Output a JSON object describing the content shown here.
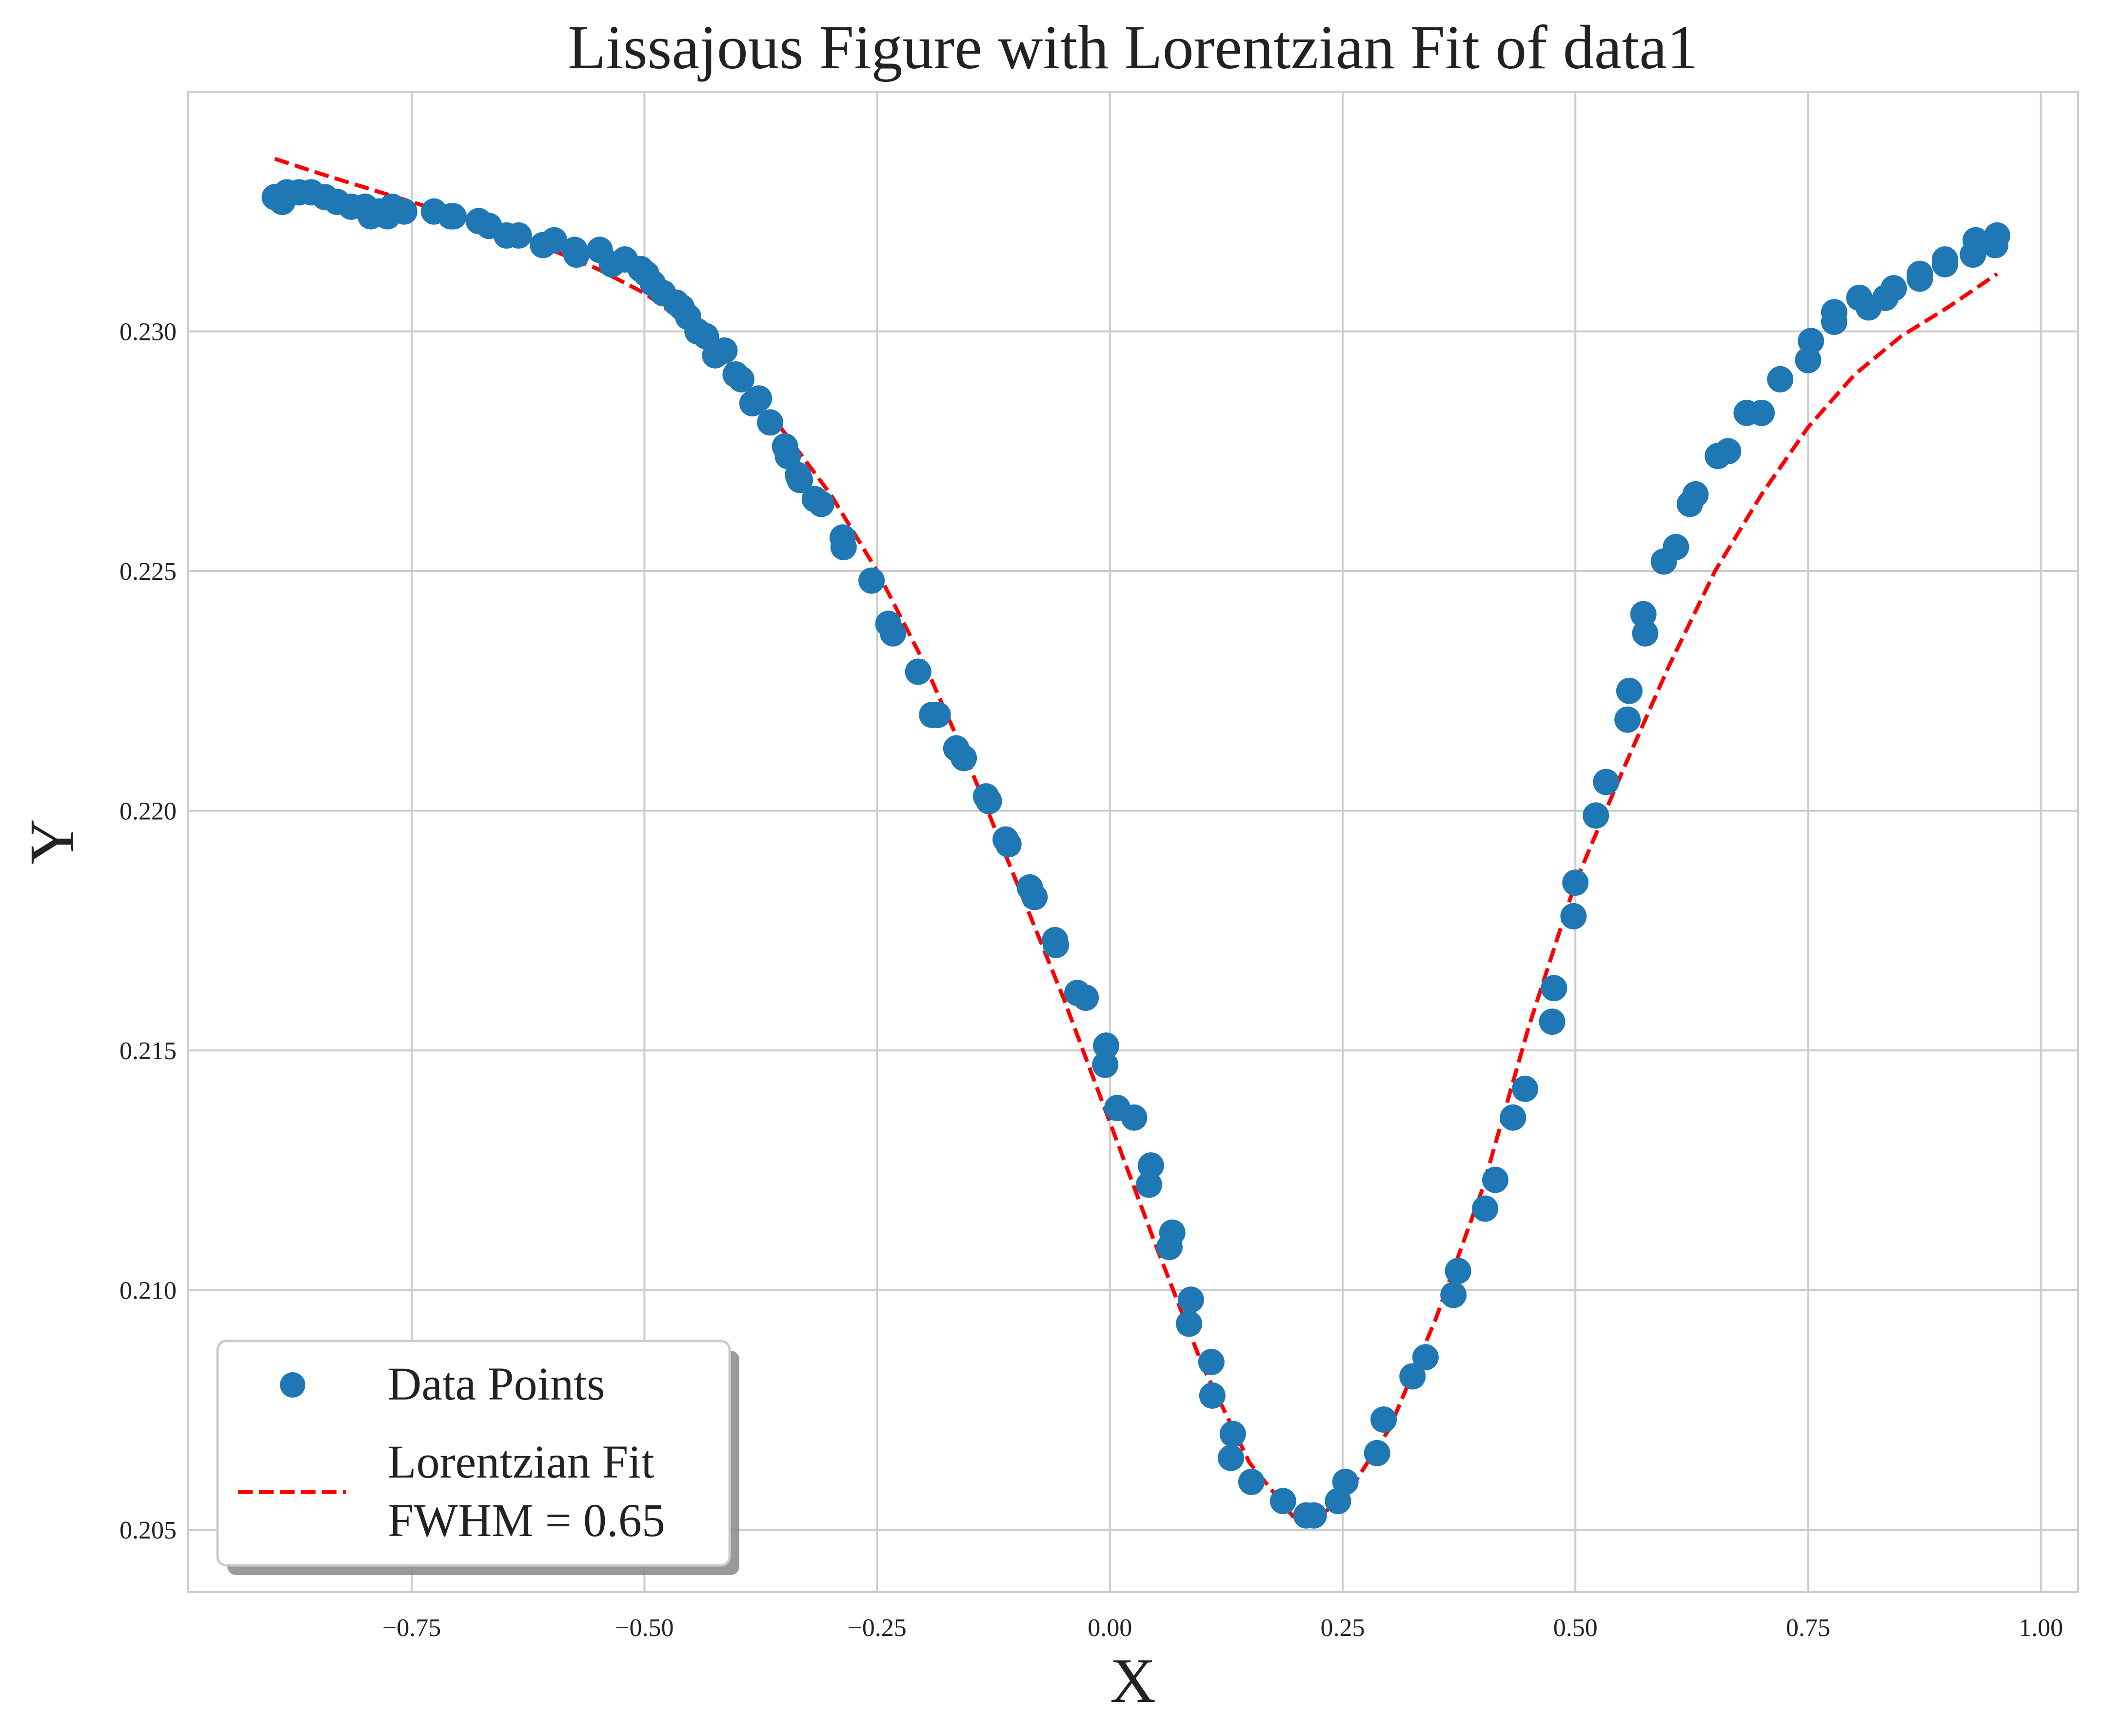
{
  "chart_data": {
    "type": "scatter",
    "title": "Lissajous Figure with Lorentzian Fit of data1",
    "xlabel": "X",
    "ylabel": "Y",
    "xlim": [
      -0.99,
      1.04
    ],
    "ylim": [
      0.2037,
      0.235
    ],
    "x_ticks": [
      -0.75,
      -0.5,
      -0.25,
      0.0,
      0.25,
      0.5,
      0.75,
      1.0
    ],
    "x_tick_labels": [
      "−0.75",
      "−0.50",
      "−0.25",
      "0.00",
      "0.25",
      "0.50",
      "0.75",
      "1.00"
    ],
    "y_ticks": [
      0.205,
      0.21,
      0.215,
      0.22,
      0.225,
      0.23
    ],
    "y_tick_labels": [
      "0.205",
      "0.210",
      "0.215",
      "0.220",
      "0.225",
      "0.230"
    ],
    "grid": true,
    "legend_position": "lower-left",
    "legend": [
      {
        "label": "Data Points",
        "marker": "circle"
      },
      {
        "label": "Lorentzian Fit\nFWHM = 0.65",
        "marker": "dashed-line"
      }
    ],
    "colors": {
      "points": "#1f77b4",
      "fit": "#ff0000",
      "grid": "#cccccc",
      "axes": "#cccccc"
    },
    "series": [
      {
        "name": "Data Points",
        "kind": "scatter",
        "points": [
          [
            -0.897,
            0.2328
          ],
          [
            -0.889,
            0.2327
          ],
          [
            -0.884,
            0.2329
          ],
          [
            -0.871,
            0.2329
          ],
          [
            -0.858,
            0.2329
          ],
          [
            -0.843,
            0.2328
          ],
          [
            -0.83,
            0.2327
          ],
          [
            -0.815,
            0.2326
          ],
          [
            -0.8,
            0.2326
          ],
          [
            -0.794,
            0.2324
          ],
          [
            -0.785,
            0.2325
          ],
          [
            -0.776,
            0.2324
          ],
          [
            -0.771,
            0.2326
          ],
          [
            -0.758,
            0.2325
          ],
          [
            -0.726,
            0.2325
          ],
          [
            -0.708,
            0.2324
          ],
          [
            -0.705,
            0.2324
          ],
          [
            -0.678,
            0.2323
          ],
          [
            -0.667,
            0.2322
          ],
          [
            -0.648,
            0.232
          ],
          [
            -0.635,
            0.232
          ],
          [
            -0.609,
            0.2318
          ],
          [
            -0.597,
            0.2319
          ],
          [
            -0.575,
            0.2317
          ],
          [
            -0.573,
            0.2316
          ],
          [
            -0.548,
            0.2317
          ],
          [
            -0.535,
            0.2314
          ],
          [
            -0.521,
            0.2315
          ],
          [
            -0.504,
            0.2313
          ],
          [
            -0.498,
            0.2312
          ],
          [
            -0.491,
            0.231
          ],
          [
            -0.48,
            0.2308
          ],
          [
            -0.466,
            0.2306
          ],
          [
            -0.46,
            0.2305
          ],
          [
            -0.453,
            0.2303
          ],
          [
            -0.443,
            0.23
          ],
          [
            -0.434,
            0.2299
          ],
          [
            -0.424,
            0.2295
          ],
          [
            -0.414,
            0.2296
          ],
          [
            -0.402,
            0.2291
          ],
          [
            -0.396,
            0.229
          ],
          [
            -0.384,
            0.2285
          ],
          [
            -0.377,
            0.2286
          ],
          [
            -0.365,
            0.2281
          ],
          [
            -0.349,
            0.2276
          ],
          [
            -0.346,
            0.2274
          ],
          [
            -0.335,
            0.227
          ],
          [
            -0.333,
            0.2269
          ],
          [
            -0.317,
            0.2265
          ],
          [
            -0.31,
            0.2264
          ],
          [
            -0.287,
            0.2257
          ],
          [
            -0.286,
            0.2255
          ],
          [
            -0.256,
            0.2248
          ],
          [
            -0.238,
            0.2239
          ],
          [
            -0.233,
            0.2237
          ],
          [
            -0.206,
            0.2229
          ],
          [
            -0.191,
            0.222
          ],
          [
            -0.185,
            0.222
          ],
          [
            -0.165,
            0.2213
          ],
          [
            -0.157,
            0.2211
          ],
          [
            -0.133,
            0.2203
          ],
          [
            -0.13,
            0.2202
          ],
          [
            -0.112,
            0.2194
          ],
          [
            -0.109,
            0.2193
          ],
          [
            -0.086,
            0.2184
          ],
          [
            -0.081,
            0.2182
          ],
          [
            -0.059,
            0.2173
          ],
          [
            -0.058,
            0.2172
          ],
          [
            -0.035,
            0.2162
          ],
          [
            -0.026,
            0.2161
          ],
          [
            -0.004,
            0.2151
          ],
          [
            -0.005,
            0.2147
          ],
          [
            0.008,
            0.2138
          ],
          [
            0.026,
            0.2136
          ],
          [
            0.044,
            0.2126
          ],
          [
            0.042,
            0.2122
          ],
          [
            0.067,
            0.2112
          ],
          [
            0.064,
            0.2109
          ],
          [
            0.087,
            0.2098
          ],
          [
            0.085,
            0.2093
          ],
          [
            0.109,
            0.2085
          ],
          [
            0.11,
            0.2078
          ],
          [
            0.132,
            0.207
          ],
          [
            0.13,
            0.2065
          ],
          [
            0.152,
            0.206
          ],
          [
            0.186,
            0.2056
          ],
          [
            0.211,
            0.2053
          ],
          [
            0.219,
            0.2053
          ],
          [
            0.245,
            0.2056
          ],
          [
            0.253,
            0.206
          ],
          [
            0.287,
            0.2066
          ],
          [
            0.294,
            0.2073
          ],
          [
            0.325,
            0.2082
          ],
          [
            0.339,
            0.2086
          ],
          [
            0.369,
            0.2099
          ],
          [
            0.374,
            0.2104
          ],
          [
            0.403,
            0.2117
          ],
          [
            0.414,
            0.2123
          ],
          [
            0.433,
            0.2136
          ],
          [
            0.446,
            0.2142
          ],
          [
            0.475,
            0.2156
          ],
          [
            0.477,
            0.2163
          ],
          [
            0.498,
            0.2178
          ],
          [
            0.5,
            0.2185
          ],
          [
            0.522,
            0.2199
          ],
          [
            0.533,
            0.2206
          ],
          [
            0.556,
            0.2219
          ],
          [
            0.558,
            0.2225
          ],
          [
            0.575,
            0.2237
          ],
          [
            0.573,
            0.2241
          ],
          [
            0.595,
            0.2252
          ],
          [
            0.608,
            0.2255
          ],
          [
            0.623,
            0.2264
          ],
          [
            0.629,
            0.2266
          ],
          [
            0.653,
            0.2274
          ],
          [
            0.664,
            0.2275
          ],
          [
            0.684,
            0.2283
          ],
          [
            0.7,
            0.2283
          ],
          [
            0.72,
            0.229
          ],
          [
            0.75,
            0.2294
          ],
          [
            0.753,
            0.2298
          ],
          [
            0.778,
            0.2302
          ],
          [
            0.778,
            0.2304
          ],
          [
            0.805,
            0.2307
          ],
          [
            0.815,
            0.2305
          ],
          [
            0.833,
            0.2307
          ],
          [
            0.842,
            0.2309
          ],
          [
            0.87,
            0.2311
          ],
          [
            0.87,
            0.2312
          ],
          [
            0.897,
            0.2314
          ],
          [
            0.897,
            0.2315
          ],
          [
            0.927,
            0.2316
          ],
          [
            0.93,
            0.2319
          ],
          [
            0.951,
            0.2318
          ],
          [
            0.953,
            0.232
          ]
        ]
      },
      {
        "name": "Lorentzian Fit\nFWHM = 0.65",
        "kind": "line",
        "style": "dashed",
        "points": [
          [
            -0.897,
            0.2336
          ],
          [
            -0.85,
            0.2333
          ],
          [
            -0.8,
            0.233
          ],
          [
            -0.75,
            0.2327
          ],
          [
            -0.7,
            0.2324
          ],
          [
            -0.65,
            0.232
          ],
          [
            -0.6,
            0.2317
          ],
          [
            -0.55,
            0.2313
          ],
          [
            -0.5,
            0.2308
          ],
          [
            -0.45,
            0.2301
          ],
          [
            -0.4,
            0.2291
          ],
          [
            -0.35,
            0.2279
          ],
          [
            -0.3,
            0.2266
          ],
          [
            -0.25,
            0.225
          ],
          [
            -0.2,
            0.2231
          ],
          [
            -0.15,
            0.2209
          ],
          [
            -0.1,
            0.2185
          ],
          [
            -0.05,
            0.2161
          ],
          [
            0.0,
            0.2135
          ],
          [
            0.05,
            0.2109
          ],
          [
            0.1,
            0.2084
          ],
          [
            0.15,
            0.2064
          ],
          [
            0.2,
            0.2052
          ],
          [
            0.215,
            0.2052
          ],
          [
            0.25,
            0.2056
          ],
          [
            0.3,
            0.2071
          ],
          [
            0.35,
            0.2094
          ],
          [
            0.4,
            0.2121
          ],
          [
            0.45,
            0.2155
          ],
          [
            0.5,
            0.2185
          ],
          [
            0.55,
            0.2208
          ],
          [
            0.6,
            0.223
          ],
          [
            0.65,
            0.225
          ],
          [
            0.7,
            0.2266
          ],
          [
            0.75,
            0.228
          ],
          [
            0.8,
            0.2291
          ],
          [
            0.85,
            0.2299
          ],
          [
            0.9,
            0.2305
          ],
          [
            0.953,
            0.2312
          ]
        ]
      }
    ]
  }
}
